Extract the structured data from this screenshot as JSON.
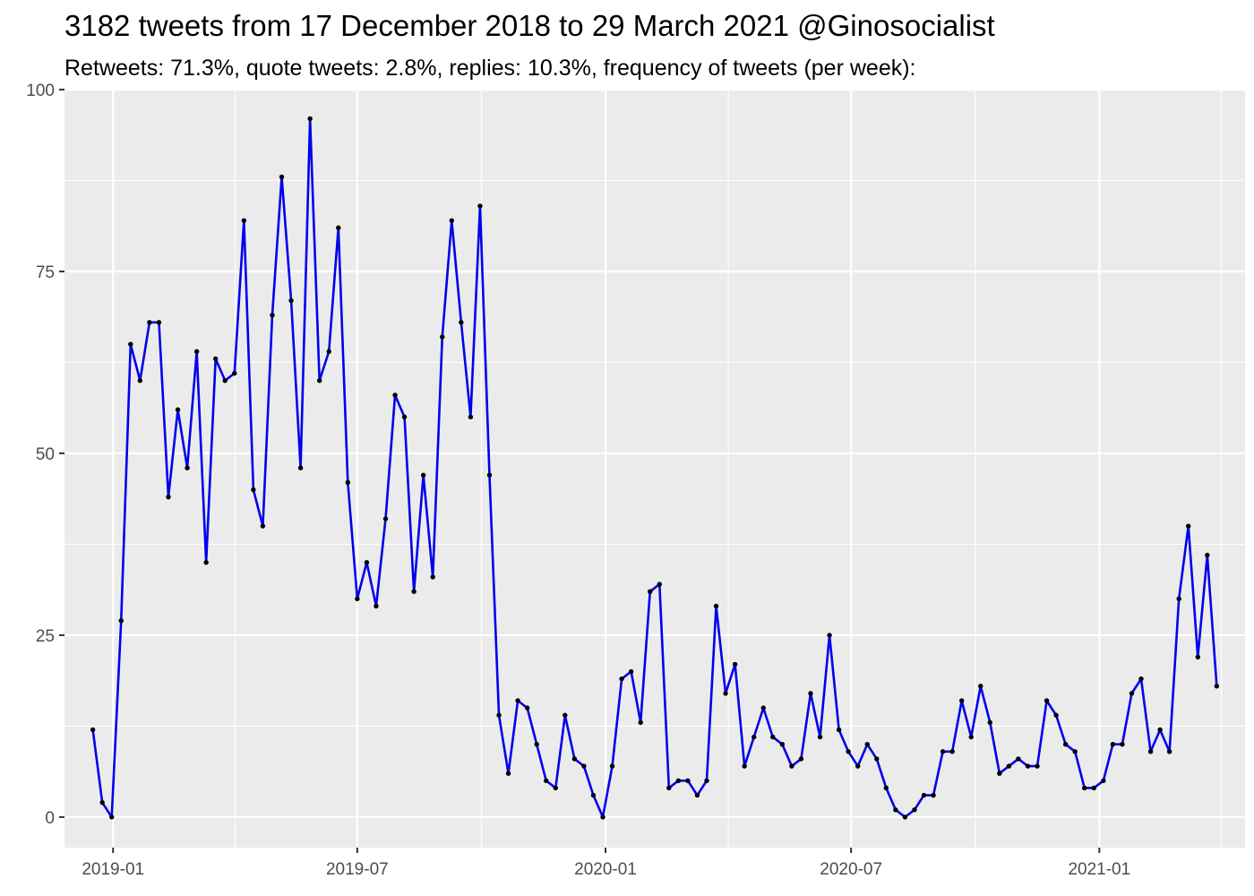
{
  "chart_data": {
    "type": "line",
    "title": "3182 tweets from 17 December 2018 to 29 March 2021 @Ginosocialist",
    "subtitle": "Retweets: 71.3%, quote tweets: 2.8%, replies: 10.3%, frequency of tweets (per week):",
    "xlabel": "",
    "ylabel": "",
    "ylim": [
      -4.2,
      100
    ],
    "xlim": [
      "2018-11-26",
      "2021-04-19"
    ],
    "y_ticks": [
      0,
      25,
      50,
      75,
      100
    ],
    "y_tick_labels": [
      "0",
      "25",
      "50",
      "75",
      "100"
    ],
    "x_ticks": [
      "2019-01-01",
      "2019-07-01",
      "2020-01-01",
      "2020-07-01",
      "2021-01-01"
    ],
    "x_tick_labels": [
      "2019-01",
      "2019-07",
      "2020-01",
      "2020-07",
      "2021-01"
    ],
    "grid": true,
    "line_color": "#0000ee",
    "point_color": "#000000",
    "panel_color": "#ebebeb",
    "series": [
      {
        "x": [
          "2018-12-17",
          "2018-12-24",
          "2018-12-31",
          "2019-01-07",
          "2019-01-14",
          "2019-01-21",
          "2019-01-28",
          "2019-02-04",
          "2019-02-11",
          "2019-02-18",
          "2019-02-25",
          "2019-03-04",
          "2019-03-11",
          "2019-03-18",
          "2019-03-25",
          "2019-04-01",
          "2019-04-08",
          "2019-04-15",
          "2019-04-22",
          "2019-04-29",
          "2019-05-06",
          "2019-05-13",
          "2019-05-20",
          "2019-05-27",
          "2019-06-03",
          "2019-06-10",
          "2019-06-17",
          "2019-06-24",
          "2019-07-01",
          "2019-07-08",
          "2019-07-15",
          "2019-07-22",
          "2019-07-29",
          "2019-08-05",
          "2019-08-12",
          "2019-08-19",
          "2019-08-26",
          "2019-09-02",
          "2019-09-09",
          "2019-09-16",
          "2019-09-23",
          "2019-09-30",
          "2019-10-07",
          "2019-10-14",
          "2019-10-21",
          "2019-10-28",
          "2019-11-04",
          "2019-11-11",
          "2019-11-18",
          "2019-11-25",
          "2019-12-02",
          "2019-12-09",
          "2019-12-16",
          "2019-12-23",
          "2019-12-30",
          "2020-01-06",
          "2020-01-13",
          "2020-01-20",
          "2020-01-27",
          "2020-02-03",
          "2020-02-10",
          "2020-02-17",
          "2020-02-24",
          "2020-03-02",
          "2020-03-09",
          "2020-03-16",
          "2020-03-23",
          "2020-03-30",
          "2020-04-06",
          "2020-04-13",
          "2020-04-20",
          "2020-04-27",
          "2020-05-04",
          "2020-05-11",
          "2020-05-18",
          "2020-05-25",
          "2020-06-01",
          "2020-06-08",
          "2020-06-15",
          "2020-06-22",
          "2020-06-29",
          "2020-07-06",
          "2020-07-13",
          "2020-07-20",
          "2020-07-27",
          "2020-08-03",
          "2020-08-10",
          "2020-08-17",
          "2020-08-24",
          "2020-08-31",
          "2020-09-07",
          "2020-09-14",
          "2020-09-21",
          "2020-09-28",
          "2020-10-05",
          "2020-10-12",
          "2020-10-19",
          "2020-10-26",
          "2020-11-02",
          "2020-11-09",
          "2020-11-16",
          "2020-11-23",
          "2020-11-30",
          "2020-12-07",
          "2020-12-14",
          "2020-12-21",
          "2020-12-28",
          "2021-01-04",
          "2021-01-11",
          "2021-01-18",
          "2021-01-25",
          "2021-02-01",
          "2021-02-08",
          "2021-02-15",
          "2021-02-22",
          "2021-03-01",
          "2021-03-08",
          "2021-03-15",
          "2021-03-22",
          "2021-03-29"
        ],
        "values": [
          12,
          2,
          0,
          27,
          65,
          60,
          68,
          68,
          44,
          56,
          48,
          64,
          35,
          63,
          60,
          61,
          82,
          45,
          40,
          69,
          88,
          71,
          48,
          96,
          60,
          64,
          81,
          46,
          30,
          35,
          29,
          41,
          58,
          55,
          31,
          47,
          33,
          66,
          82,
          68,
          55,
          84,
          47,
          14,
          6,
          16,
          15,
          10,
          5,
          4,
          14,
          8,
          7,
          3,
          0,
          7,
          19,
          20,
          13,
          31,
          32,
          4,
          5,
          5,
          3,
          5,
          29,
          17,
          21,
          7,
          11,
          15,
          11,
          10,
          7,
          8,
          17,
          11,
          25,
          12,
          9,
          7,
          10,
          8,
          4,
          1,
          0,
          1,
          3,
          3,
          9,
          9,
          16,
          11,
          18,
          13,
          6,
          7,
          8,
          7,
          7,
          16,
          14,
          10,
          9,
          4,
          4,
          5,
          10,
          10,
          17,
          19,
          9,
          12,
          9,
          30,
          40,
          22,
          36,
          18
        ]
      }
    ]
  }
}
